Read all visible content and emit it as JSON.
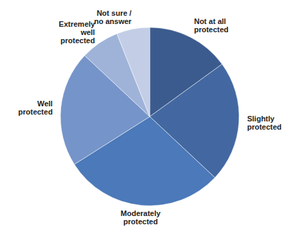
{
  "chart_data": {
    "type": "pie",
    "categories": [
      "Not at all protected",
      "Slightly protected",
      "Moderately protected",
      "Well protected",
      "Extremely well protected",
      "Not sure / no answer"
    ],
    "values": [
      15,
      22,
      29,
      21,
      7,
      6
    ],
    "colors": [
      "#3b5b8e",
      "#4368a1",
      "#4b79b9",
      "#7594c9",
      "#9fb3d9",
      "#c3cee6"
    ]
  }
}
